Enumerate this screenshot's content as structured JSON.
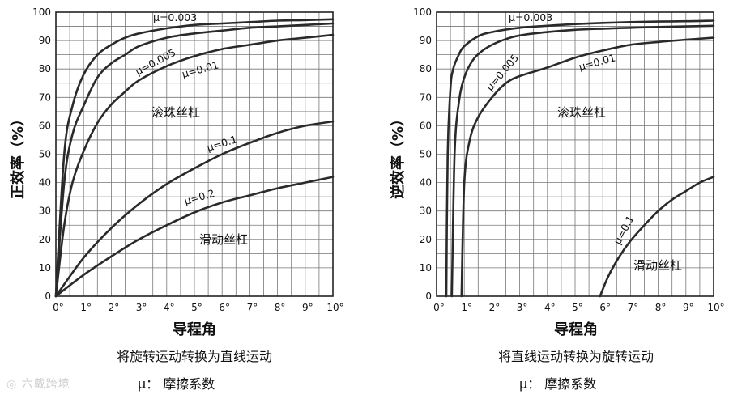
{
  "chart_data": [
    {
      "type": "line",
      "ylabel": "正效率（%）",
      "xlabel": "导程角",
      "caption": "将旋转运动转换为直线运动",
      "note": "μ： 摩擦系数",
      "xlim": [
        0,
        10
      ],
      "ylim": [
        0,
        100
      ],
      "x_ticks": [
        "0°",
        "1°",
        "2°",
        "3°",
        "4°",
        "5°",
        "6°",
        "7°",
        "8°",
        "9°",
        "10°"
      ],
      "y_ticks": [
        "0",
        "10",
        "20",
        "30",
        "40",
        "50",
        "60",
        "70",
        "80",
        "90",
        "100"
      ],
      "grid": true,
      "regions": [
        "滚珠丝杠",
        "滑动丝杠"
      ],
      "series": [
        {
          "name": "μ=0.003",
          "x": [
            0,
            0.3,
            0.6,
            1,
            1.5,
            2,
            2.5,
            3,
            4,
            5,
            6,
            7,
            8,
            9,
            10
          ],
          "y": [
            0,
            50,
            67,
            78,
            85,
            88.5,
            91,
            92.5,
            94.3,
            95.5,
            96,
            96.5,
            97,
            97.2,
            97.5
          ]
        },
        {
          "name": "μ=0.005",
          "x": [
            0,
            0.3,
            0.6,
            1,
            1.5,
            2,
            2.5,
            3,
            4,
            5,
            6,
            7,
            8,
            9,
            10
          ],
          "y": [
            0,
            40,
            57,
            67,
            77,
            82,
            85,
            88,
            91,
            92.5,
            93.5,
            94.5,
            95,
            95.5,
            96
          ]
        },
        {
          "name": "μ=0.01",
          "x": [
            0,
            0.3,
            0.6,
            1,
            1.5,
            2,
            2.5,
            3,
            4,
            5,
            6,
            7,
            8,
            9,
            10
          ],
          "y": [
            0,
            25,
            40,
            51,
            61,
            67.5,
            72,
            76,
            81,
            84.5,
            87,
            88.5,
            90,
            91,
            92
          ]
        },
        {
          "name": "μ=0.1",
          "x": [
            0,
            1,
            2,
            3,
            4,
            5,
            6,
            7,
            8,
            9,
            10
          ],
          "y": [
            0,
            13.5,
            24,
            32.5,
            39.5,
            45,
            50,
            54,
            57.5,
            60,
            61.5
          ]
        },
        {
          "name": "μ=0.2",
          "x": [
            0,
            1,
            2,
            3,
            4,
            5,
            6,
            7,
            8,
            9,
            10
          ],
          "y": [
            0,
            7.5,
            14,
            20,
            25,
            29.5,
            33,
            35.5,
            38,
            40,
            42
          ]
        }
      ]
    },
    {
      "type": "line",
      "ylabel": "逆效率（%）",
      "xlabel": "导程角",
      "caption": "将直线运动转换为旋转运动",
      "note": "μ： 摩擦系数",
      "xlim": [
        0,
        10
      ],
      "ylim": [
        0,
        100
      ],
      "x_ticks": [
        "0°",
        "1°",
        "2°",
        "3°",
        "4°",
        "5°",
        "6°",
        "7°",
        "8°",
        "9°",
        "10°"
      ],
      "y_ticks": [
        "0",
        "10",
        "20",
        "30",
        "40",
        "50",
        "60",
        "70",
        "80",
        "90",
        "100"
      ],
      "grid": true,
      "regions": [
        "滚珠丝杠",
        "滑动丝杠"
      ],
      "series": [
        {
          "name": "μ=0.003",
          "x": [
            0.35,
            0.4,
            0.5,
            0.6,
            0.8,
            1,
            1.5,
            2,
            3,
            4,
            5,
            6,
            7,
            8,
            9,
            10
          ],
          "y": [
            0,
            50,
            73,
            80,
            85,
            88,
            91.5,
            93,
            94.5,
            95.2,
            95.8,
            96.2,
            96.5,
            96.7,
            96.8,
            97
          ]
        },
        {
          "name": "μ=0.005",
          "x": [
            0.55,
            0.65,
            0.8,
            1,
            1.3,
            1.6,
            2,
            2.5,
            3,
            4,
            5,
            6,
            7,
            8,
            9,
            10
          ],
          "y": [
            0,
            50,
            68,
            77,
            83,
            86,
            88.5,
            90.5,
            91.8,
            93,
            93.8,
            94.2,
            94.5,
            94.8,
            95,
            95.2
          ]
        },
        {
          "name": "μ=0.01",
          "x": [
            0.9,
            1,
            1.2,
            1.5,
            2,
            2.5,
            3,
            4,
            5,
            6,
            7,
            8,
            9,
            10
          ],
          "y": [
            0,
            40,
            55,
            63,
            70,
            75,
            77.5,
            80.5,
            84,
            86.5,
            88.5,
            89.5,
            90.3,
            91
          ]
        },
        {
          "name": "μ=0.1",
          "x": [
            5.9,
            6.2,
            6.6,
            7,
            7.5,
            8,
            8.5,
            9,
            9.5,
            10
          ],
          "y": [
            0,
            7,
            14,
            19.5,
            25,
            30,
            34,
            37,
            40,
            42
          ]
        }
      ]
    }
  ],
  "watermark": "六戴跨境"
}
